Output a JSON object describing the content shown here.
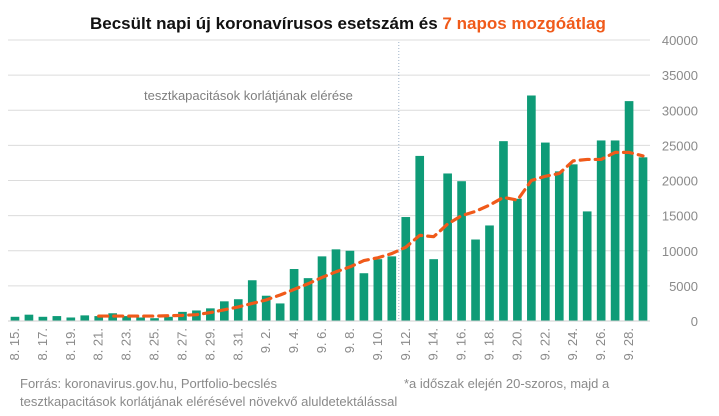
{
  "title": {
    "main": "Becsült napi új koronavírusos esetszám és ",
    "accent": "7 napos mozgóátlag"
  },
  "annotation": "tesztkapacitások korlátjának elérése",
  "footer": {
    "source": "Forrás: koronavirus.gov.hu, Portfolio-becslés",
    "note_line1": "*a időszak elején 20-szoros, majd a",
    "note_line2": "tesztkapacitások korlátjának elérésével növekvő aluldetektálással"
  },
  "colors": {
    "bar": "#0e9b77",
    "line": "#f05a1a",
    "grid": "#dcdcdc",
    "accent": "#f05a1a"
  },
  "chart_data": {
    "type": "bar",
    "categories": [
      "8. 15.",
      "8. 16.",
      "8. 17.",
      "8. 18.",
      "8. 19.",
      "8. 20.",
      "8. 21.",
      "8. 22.",
      "8. 23.",
      "8. 24.",
      "8. 25.",
      "8. 26.",
      "8. 27.",
      "8. 28.",
      "8. 29.",
      "8. 30.",
      "8. 31.",
      "9. 1.",
      "9. 2.",
      "9. 3.",
      "9. 4.",
      "9. 5.",
      "9. 6.",
      "9. 7.",
      "9. 8.",
      "9. 9.",
      "9. 10.",
      "9. 11.",
      "9. 12.",
      "9. 13.",
      "9. 14.",
      "9. 15.",
      "9. 16.",
      "9. 17.",
      "9. 18.",
      "9. 19.",
      "9. 20.",
      "9. 21.",
      "9. 22.",
      "9. 23.",
      "9. 24.",
      "9. 25.",
      "9. 26.",
      "9. 27.",
      "9. 28.",
      "9. 29."
    ],
    "tick_labels": [
      "8. 15.",
      "8. 17.",
      "8. 19.",
      "8. 21.",
      "8. 23.",
      "8. 25.",
      "8. 27.",
      "8. 29.",
      "8. 31.",
      "9. 2.",
      "9. 4.",
      "9. 6.",
      "9. 8.",
      "9. 10.",
      "9. 12.",
      "9. 14.",
      "9. 16.",
      "9. 18.",
      "9. 20.",
      "9. 22.",
      "9. 24.",
      "9. 26.",
      "9. 28."
    ],
    "series": [
      {
        "type": "bar",
        "values": [
          600,
          900,
          600,
          700,
          500,
          800,
          700,
          1100,
          700,
          500,
          400,
          600,
          1300,
          1500,
          1800,
          2800,
          3100,
          5800,
          3600,
          2500,
          7400,
          6100,
          9200,
          10200,
          10000,
          6800,
          8800,
          9200,
          14800,
          23500,
          8800,
          21000,
          19900,
          11600,
          13600,
          25600,
          17400,
          32100,
          25400,
          21300,
          22300,
          15600,
          25700,
          25700,
          31300,
          23300
        ],
        "note": "values per day; series has 46 daily bars"
      },
      {
        "type": "line",
        "values": [
          null,
          null,
          null,
          null,
          null,
          null,
          700,
          700,
          700,
          700,
          700,
          750,
          800,
          900,
          1200,
          1600,
          2000,
          2500,
          3000,
          3700,
          4500,
          5300,
          6200,
          7000,
          7700,
          8600,
          9000,
          9600,
          10500,
          12200,
          12000,
          13800,
          15000,
          15600,
          16500,
          17600,
          17200,
          20000,
          20600,
          21000,
          22800,
          23000,
          23000,
          24000,
          24000,
          23500
        ],
        "style": "dashed"
      }
    ],
    "yaxis": {
      "ticks": [
        0,
        5000,
        10000,
        15000,
        20000,
        25000,
        30000,
        35000,
        40000
      ],
      "ylim": [
        0,
        40000
      ],
      "position": "right"
    },
    "grid": true,
    "annotation_x": "9. 12."
  }
}
